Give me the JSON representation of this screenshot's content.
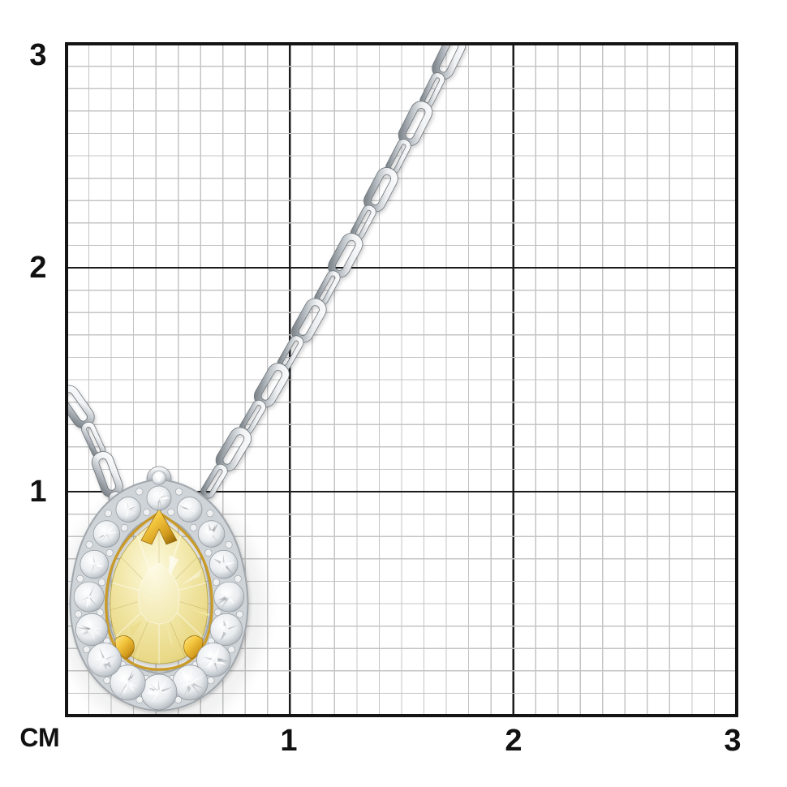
{
  "ruler": {
    "unit_label": "СМ",
    "x_tick_labels": [
      "1",
      "2",
      "3"
    ],
    "y_tick_labels": [
      "3",
      "2",
      "1"
    ],
    "cm_span": 3,
    "minor_divisions_per_cm": 10
  },
  "subject": {
    "description": "White-gold necklace with cable-link chain; pendant is a pear-shaped fancy yellow diamond in yellow-gold prongs surrounded by a halo of round white diamonds",
    "measured_on_grid": {
      "pendant_width_cm": 0.8,
      "pendant_height_cm": 1.05
    }
  },
  "colors": {
    "background": "#ffffff",
    "grid_minor": "#c4c4c4",
    "grid_major": "#1c1c1c",
    "grid_border": "#141414",
    "label": "#111111",
    "metal_light": "#ffffff",
    "metal_mid": "#b9bfc4",
    "metal_dark": "#6d747a",
    "halo_base": "#cfd4d8",
    "halo_base_edge": "#a0a6ab",
    "diamond_core": "#ffffff",
    "diamond_edge": "#9aa1a7",
    "diamond_shard_dark": "#6e757b",
    "gold_light": "#ffe98e",
    "gold_mid": "#f2c53d",
    "gold_dark": "#8f6408",
    "gold_wire": "#c9981f",
    "stone_light": "#fdfae0",
    "stone_mid": "#f2e7a8",
    "stone_deep": "#d8c465",
    "stone_outline": "#b9a94e"
  }
}
